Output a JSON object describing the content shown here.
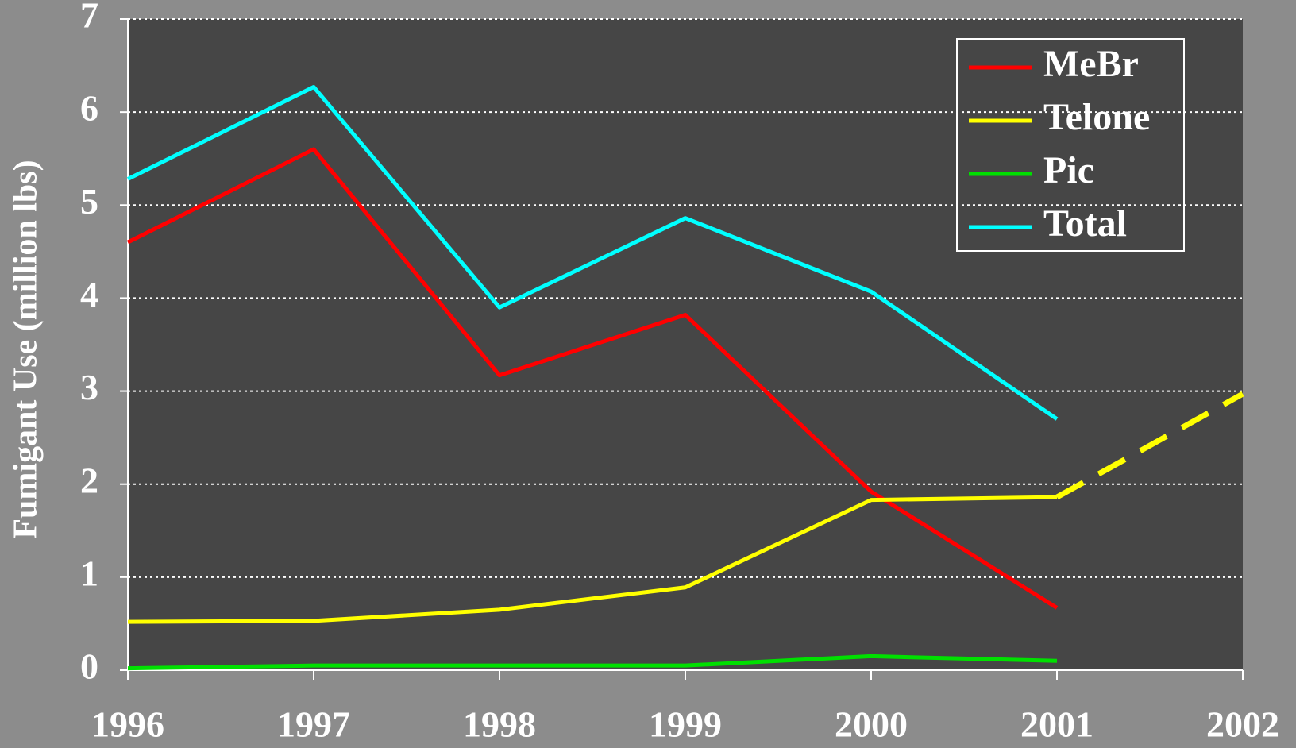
{
  "chart_data": {
    "type": "line",
    "y_label": "Fumigant Use (million lbs)",
    "x": [
      1996,
      1997,
      1998,
      1999,
      2000,
      2001,
      2002
    ],
    "xlim": [
      1996,
      2002
    ],
    "xticks": [
      1996,
      1997,
      1998,
      1999,
      2000,
      2001,
      2002
    ],
    "ylim": [
      0,
      7
    ],
    "yticks": [
      0,
      1,
      2,
      3,
      4,
      5,
      6,
      7
    ],
    "grid": true,
    "legend": "top-right",
    "series": [
      {
        "name": "MeBr",
        "color": "#ff0000",
        "values": [
          4.6,
          5.6,
          3.17,
          3.82,
          1.92,
          0.67,
          null
        ]
      },
      {
        "name": "Telone",
        "color": "#ffff00",
        "values": [
          0.52,
          0.53,
          0.65,
          0.89,
          1.83,
          1.86,
          2.97
        ],
        "dash_from_index": 5
      },
      {
        "name": "Pic",
        "color": "#00e000",
        "values": [
          0.02,
          0.05,
          0.05,
          0.05,
          0.15,
          0.1,
          null
        ]
      },
      {
        "name": "Total",
        "color": "#00ffff",
        "values": [
          5.28,
          6.27,
          3.9,
          4.86,
          4.07,
          2.7,
          null
        ]
      }
    ]
  }
}
